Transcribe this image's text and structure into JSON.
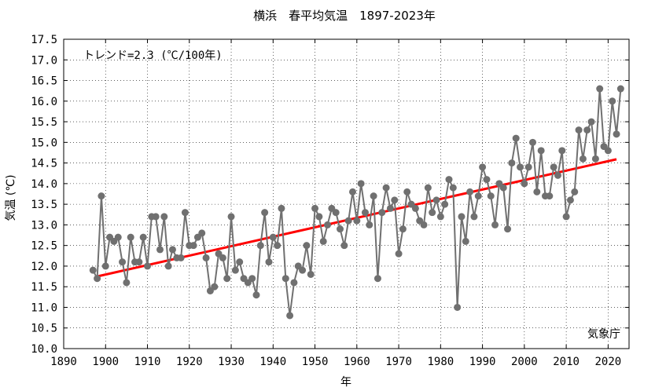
{
  "chart_data": {
    "type": "line",
    "title": "横浜　春平均気温　1897-2023年",
    "xlabel": "年",
    "ylabel": "気温 (℃)",
    "xlim": [
      1890,
      2025
    ],
    "ylim": [
      10.0,
      17.5
    ],
    "x_ticks": [
      1890,
      1900,
      1910,
      1920,
      1930,
      1940,
      1950,
      1960,
      1970,
      1980,
      1990,
      2000,
      2010,
      2020
    ],
    "y_ticks": [
      10.0,
      10.5,
      11.0,
      11.5,
      12.0,
      12.5,
      13.0,
      13.5,
      14.0,
      14.5,
      15.0,
      15.5,
      16.0,
      16.5,
      17.0,
      17.5
    ],
    "grid": true,
    "annotation": "トレンド=2.3 (℃/100年)",
    "credit": "気象庁",
    "colors": {
      "series": "#707070",
      "trend": "#ff0000"
    },
    "series": [
      {
        "x": [
          1897,
          1898,
          1899,
          1900,
          1901,
          1902,
          1903,
          1904,
          1905,
          1906,
          1907,
          1908,
          1909,
          1910,
          1911,
          1912,
          1913,
          1914,
          1915,
          1916,
          1917,
          1918,
          1919,
          1920,
          1921,
          1922,
          1923,
          1924,
          1925,
          1926,
          1927,
          1928,
          1929,
          1930,
          1931,
          1932,
          1933,
          1934,
          1935,
          1936,
          1937,
          1938,
          1939,
          1940,
          1941,
          1942,
          1943,
          1944,
          1945,
          1946,
          1947,
          1948,
          1949,
          1950,
          1951,
          1952,
          1953,
          1954,
          1955,
          1956,
          1957,
          1958,
          1959,
          1960,
          1961,
          1962,
          1963,
          1964,
          1965,
          1966,
          1967,
          1968,
          1969,
          1970,
          1971,
          1972,
          1973,
          1974,
          1975,
          1976,
          1977,
          1978,
          1979,
          1980,
          1981,
          1982,
          1983,
          1984,
          1985,
          1986,
          1987,
          1988,
          1989,
          1990,
          1991,
          1992,
          1993,
          1994,
          1995,
          1996,
          1997,
          1998,
          1999,
          2000,
          2001,
          2002,
          2003,
          2004,
          2005,
          2006,
          2007,
          2008,
          2009,
          2010,
          2011,
          2012,
          2013,
          2014,
          2015,
          2016,
          2017,
          2018,
          2019,
          2020,
          2021,
          2022,
          2023
        ],
        "values": [
          11.9,
          11.7,
          13.7,
          12.0,
          12.7,
          12.6,
          12.7,
          12.1,
          11.6,
          12.7,
          12.1,
          12.1,
          12.7,
          12.0,
          13.2,
          13.2,
          12.4,
          13.2,
          12.0,
          12.4,
          12.2,
          12.2,
          13.3,
          12.5,
          12.5,
          12.7,
          12.8,
          12.2,
          11.4,
          11.5,
          12.3,
          12.2,
          11.7,
          13.2,
          11.9,
          12.1,
          11.7,
          11.6,
          11.7,
          11.3,
          12.5,
          13.3,
          12.1,
          12.7,
          12.5,
          13.4,
          11.7,
          10.8,
          11.6,
          12.0,
          11.9,
          12.5,
          11.8,
          13.4,
          13.2,
          12.6,
          13.0,
          13.4,
          13.3,
          12.9,
          12.5,
          13.1,
          13.8,
          13.1,
          14.0,
          13.3,
          13.0,
          13.7,
          11.7,
          13.3,
          13.9,
          13.4,
          13.6,
          12.3,
          12.9,
          13.8,
          13.5,
          13.4,
          13.1,
          13.0,
          13.9,
          13.3,
          13.6,
          13.2,
          13.5,
          14.1,
          13.9,
          11.0,
          13.2,
          12.6,
          13.8,
          13.2,
          13.7,
          14.4,
          14.1,
          13.7,
          13.0,
          14.0,
          13.9,
          12.9,
          14.5,
          15.1,
          14.4,
          14.0,
          14.4,
          15.0,
          13.8,
          14.8,
          13.7,
          13.7,
          14.4,
          14.2,
          14.8,
          13.2,
          13.6,
          13.8,
          15.3,
          14.6,
          15.3,
          15.5,
          14.6,
          16.3,
          14.9,
          14.8,
          16.0,
          15.2,
          16.3
        ]
      }
    ],
    "trend": {
      "x": [
        1898,
        2022
      ],
      "values": [
        11.75,
        14.59
      ]
    }
  }
}
